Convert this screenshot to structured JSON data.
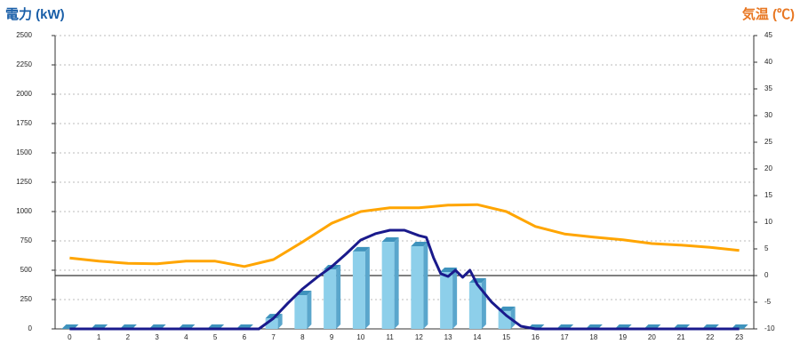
{
  "chart_data": {
    "type": "bar",
    "ylabel": "電力 (kW)",
    "y2label": "気温 (℃)",
    "categories": [
      0,
      1,
      2,
      3,
      4,
      5,
      6,
      7,
      8,
      9,
      10,
      11,
      12,
      13,
      14,
      15,
      16,
      17,
      18,
      19,
      20,
      21,
      22,
      23
    ],
    "xlim": [
      -0.5,
      23.5
    ],
    "ylim": [
      0,
      2500
    ],
    "yticks": [
      0,
      250,
      500,
      750,
      1000,
      1250,
      1500,
      1750,
      2000,
      2250,
      2500
    ],
    "y2lim": [
      -10,
      45
    ],
    "y2ticks": [
      -10,
      -5,
      0,
      5,
      10,
      15,
      20,
      25,
      30,
      35,
      40,
      45
    ],
    "grid": true,
    "series": [
      {
        "type": "bar",
        "color": "#8dcfea",
        "values": [
          0,
          0,
          0,
          0,
          0,
          0,
          0,
          90,
          288,
          508,
          660,
          742,
          705,
          485,
          394,
          152,
          0,
          0,
          0,
          0,
          0,
          0,
          0,
          0
        ]
      },
      {
        "type": "line",
        "color": "#1a1a8c",
        "x": [
          0,
          6.5,
          7,
          7.5,
          8,
          8.5,
          9,
          9.5,
          10,
          10.5,
          11,
          11.5,
          12,
          12.25,
          12.5,
          12.75,
          13,
          13.25,
          13.5,
          13.75,
          14,
          14.5,
          15,
          15.5,
          16,
          23
        ],
        "values": [
          0,
          0,
          90,
          220,
          341,
          440,
          530,
          640,
          758,
          811,
          841,
          841,
          795,
          780,
          606,
          470,
          447,
          500,
          440,
          500,
          379,
          227,
          114,
          23,
          0,
          0
        ]
      },
      {
        "type": "line",
        "color": "#ffa500",
        "axis": "y2",
        "values": [
          3.3,
          2.7,
          2.3,
          2.2,
          2.7,
          2.7,
          1.7,
          3,
          6.3,
          9.8,
          12,
          12.7,
          12.7,
          13.2,
          13.3,
          12,
          9.2,
          7.8,
          7.2,
          6.7,
          6,
          5.7,
          5.3,
          4.7
        ]
      }
    ]
  }
}
